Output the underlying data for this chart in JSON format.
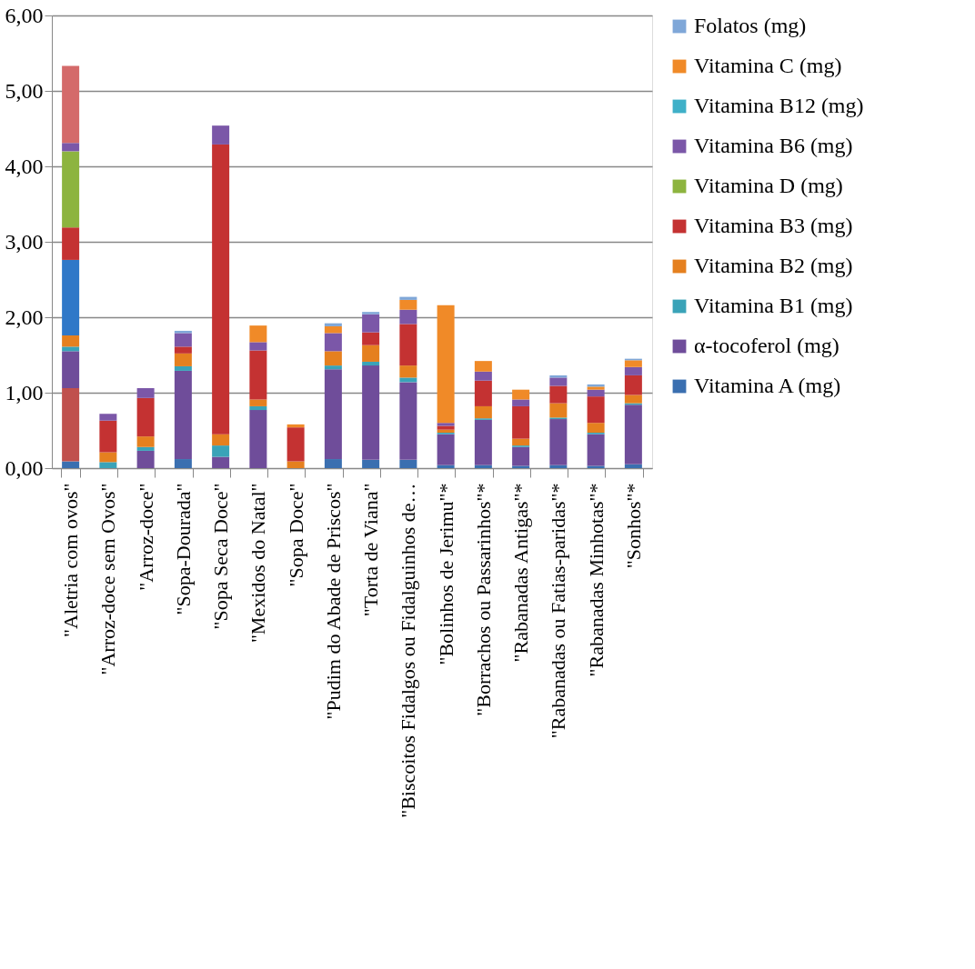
{
  "chart_data": {
    "type": "bar",
    "stacked": true,
    "categories": [
      "\"Aletria com ovos\"",
      "\"Arroz-doce sem Ovos\"",
      "\"Arroz-doce\"",
      "\"Sopa-Dourada\"",
      "\"Sopa Seca Doce\"",
      "\"Mexidos do Natal\"",
      "\"Sopa Doce\"",
      "\"Pudim do Abade de Priscos\"",
      "\"Torta de Viana\"",
      "\"Biscoitos Fidalgos ou Fidalguinhos de…",
      "\"Bolinhos de Jerimu\"*",
      "\"Borrachos ou Passarinhos\"*",
      "\"Rabanadas Antigas\"*",
      "\"Rabanadas ou Fatias-paridas\"*",
      "\"Rabanadas Minhotas\"*",
      "\"Sonhos\"*"
    ],
    "series": [
      {
        "name": "Vitamina A (mg)",
        "color": "#3a6fb0",
        "values": [
          0.09,
          0,
          0,
          0.12,
          0,
          0,
          0,
          0.12,
          0.11,
          0.11,
          0.04,
          0.04,
          0.03,
          0.04,
          0.03,
          0.05
        ]
      },
      {
        "color": "#c0504d",
        "values": [
          0.97,
          0,
          0,
          0,
          0,
          0,
          0,
          0,
          0,
          0,
          0,
          0,
          0,
          0,
          0,
          0
        ]
      },
      {
        "name": "α-tocoferol (mg)",
        "color": "#6f4d9a",
        "values": [
          0.49,
          0,
          0.23,
          1.17,
          0.15,
          0.77,
          0,
          1.19,
          1.25,
          1.03,
          0.41,
          0.6,
          0.25,
          0.61,
          0.42,
          0.79
        ]
      },
      {
        "name": "Vitamina B1 (mg)",
        "color": "#3aa3b8",
        "values": [
          0.06,
          0.08,
          0.05,
          0.06,
          0.15,
          0.05,
          0,
          0.05,
          0.05,
          0.06,
          0.02,
          0.02,
          0.02,
          0.02,
          0.02,
          0.02
        ]
      },
      {
        "name": "Vitamina B2 (mg)",
        "color": "#e5801f",
        "values": [
          0.15,
          0.13,
          0.14,
          0.17,
          0.15,
          0.09,
          0.09,
          0.19,
          0.22,
          0.16,
          0.04,
          0.16,
          0.09,
          0.19,
          0.13,
          0.11
        ]
      },
      {
        "color": "#2f78c8",
        "values": [
          1.0,
          0,
          0,
          0,
          0,
          0,
          0,
          0,
          0,
          0,
          0,
          0,
          0,
          0,
          0,
          0
        ]
      },
      {
        "name": "Vitamina B3 (mg)",
        "color": "#c43232",
        "values": [
          0.43,
          0.42,
          0.51,
          0.09,
          3.84,
          0.65,
          0.45,
          0,
          0.17,
          0.55,
          0.05,
          0.34,
          0.43,
          0.23,
          0.35,
          0.26
        ]
      },
      {
        "name": "Vitamina D (mg)",
        "color": "#8db43f",
        "values": [
          1.01,
          0,
          0,
          0,
          0,
          0,
          0,
          0,
          0,
          0,
          0,
          0,
          0,
          0,
          0,
          0
        ]
      },
      {
        "name": "Vitamina B6 (mg)",
        "color": "#7b57a8",
        "values": [
          0.11,
          0.09,
          0.13,
          0.18,
          0.25,
          0.11,
          0,
          0.24,
          0.24,
          0.19,
          0.04,
          0.12,
          0.09,
          0.11,
          0.09,
          0.11
        ]
      },
      {
        "name": "Vitamina B12 (mg)",
        "color": "#3fb0c8",
        "values": [
          0,
          0,
          0,
          0,
          0,
          0,
          0,
          0,
          0,
          0,
          0,
          0,
          0,
          0,
          0,
          0
        ]
      },
      {
        "name": "Vitamina C (mg)",
        "color": "#f08a28",
        "values": [
          0,
          0,
          0,
          0,
          0,
          0.22,
          0.04,
          0.09,
          0,
          0.13,
          1.56,
          0.14,
          0.13,
          0,
          0.04,
          0.09
        ]
      },
      {
        "color": "#d46a6a",
        "values": [
          1.02,
          0,
          0,
          0,
          0,
          0,
          0,
          0,
          0,
          0,
          0,
          0,
          0,
          0,
          0,
          0
        ]
      },
      {
        "name": "Folatos (mg)",
        "color": "#7fa7d8",
        "values": [
          0,
          0,
          0,
          0.03,
          0,
          0,
          0,
          0.04,
          0.03,
          0.04,
          0,
          0,
          0,
          0.03,
          0.03,
          0.02
        ]
      }
    ],
    "ylim": [
      0,
      6
    ],
    "yticks": [
      {
        "value": 0,
        "label": "0,00"
      },
      {
        "value": 1,
        "label": "1,00"
      },
      {
        "value": 2,
        "label": "2,00"
      },
      {
        "value": 3,
        "label": "3,00"
      },
      {
        "value": 4,
        "label": "4,00"
      },
      {
        "value": 5,
        "label": "5,00"
      },
      {
        "value": 6,
        "label": "6,00"
      }
    ],
    "grid": "y",
    "legend": "right"
  }
}
